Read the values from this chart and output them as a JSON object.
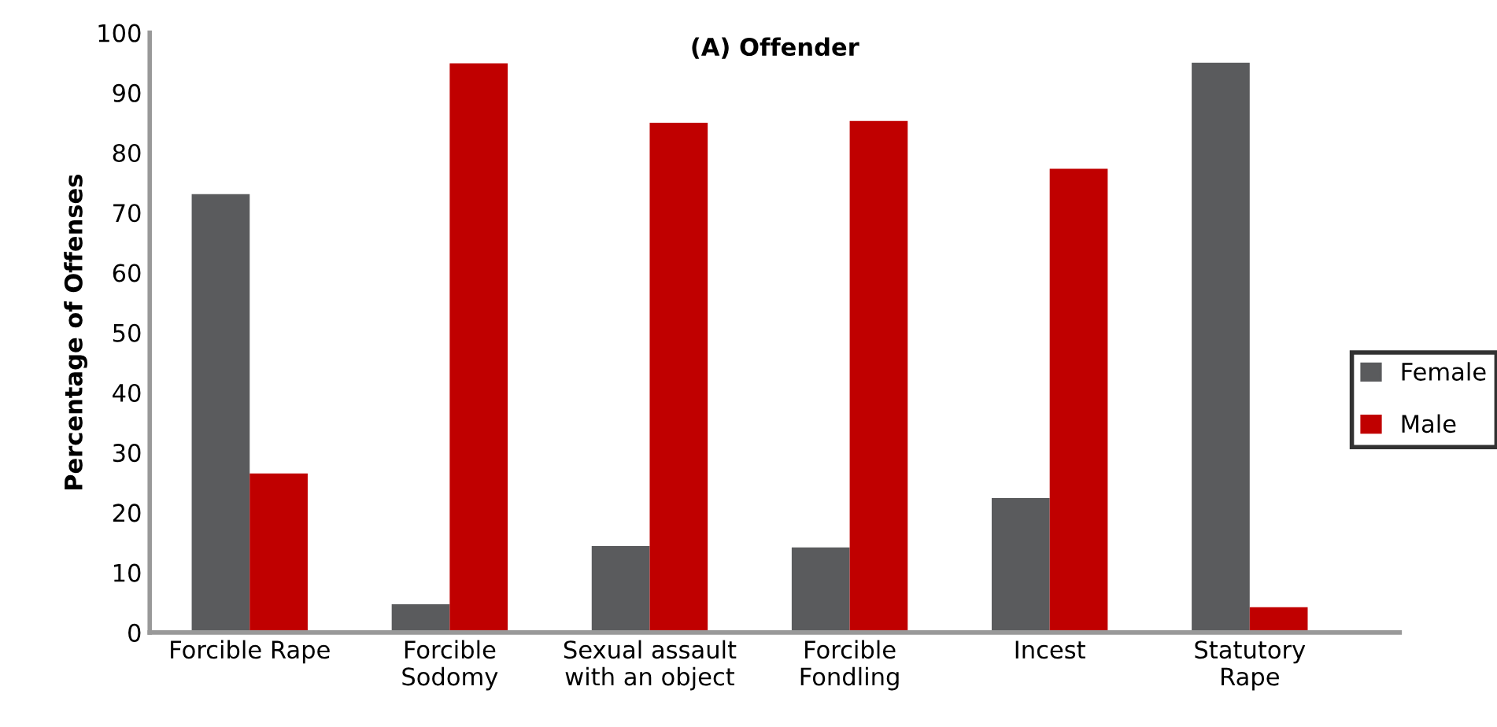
{
  "chart_data": {
    "type": "bar",
    "title": "(A) Offender",
    "ylabel": "Percentage of Offenses",
    "categories": [
      "Forcible Rape",
      "Forcible\nSodomy",
      "Sexual assault\nwith an object",
      "Forcible\nFondling",
      "Incest",
      "Statutory\nRape"
    ],
    "series": [
      {
        "name": "Female",
        "color": "#5a5b5d",
        "values": [
          73.1,
          4.7,
          14.4,
          14.2,
          22.4,
          95.0
        ]
      },
      {
        "name": "Male",
        "color": "#c00000",
        "values": [
          26.5,
          94.9,
          85.0,
          85.3,
          77.3,
          4.2
        ]
      }
    ],
    "ylim": [
      0,
      100
    ],
    "yticks": [
      0,
      10,
      20,
      30,
      40,
      50,
      60,
      70,
      80,
      90,
      100
    ],
    "grid": false,
    "legend": "right"
  }
}
